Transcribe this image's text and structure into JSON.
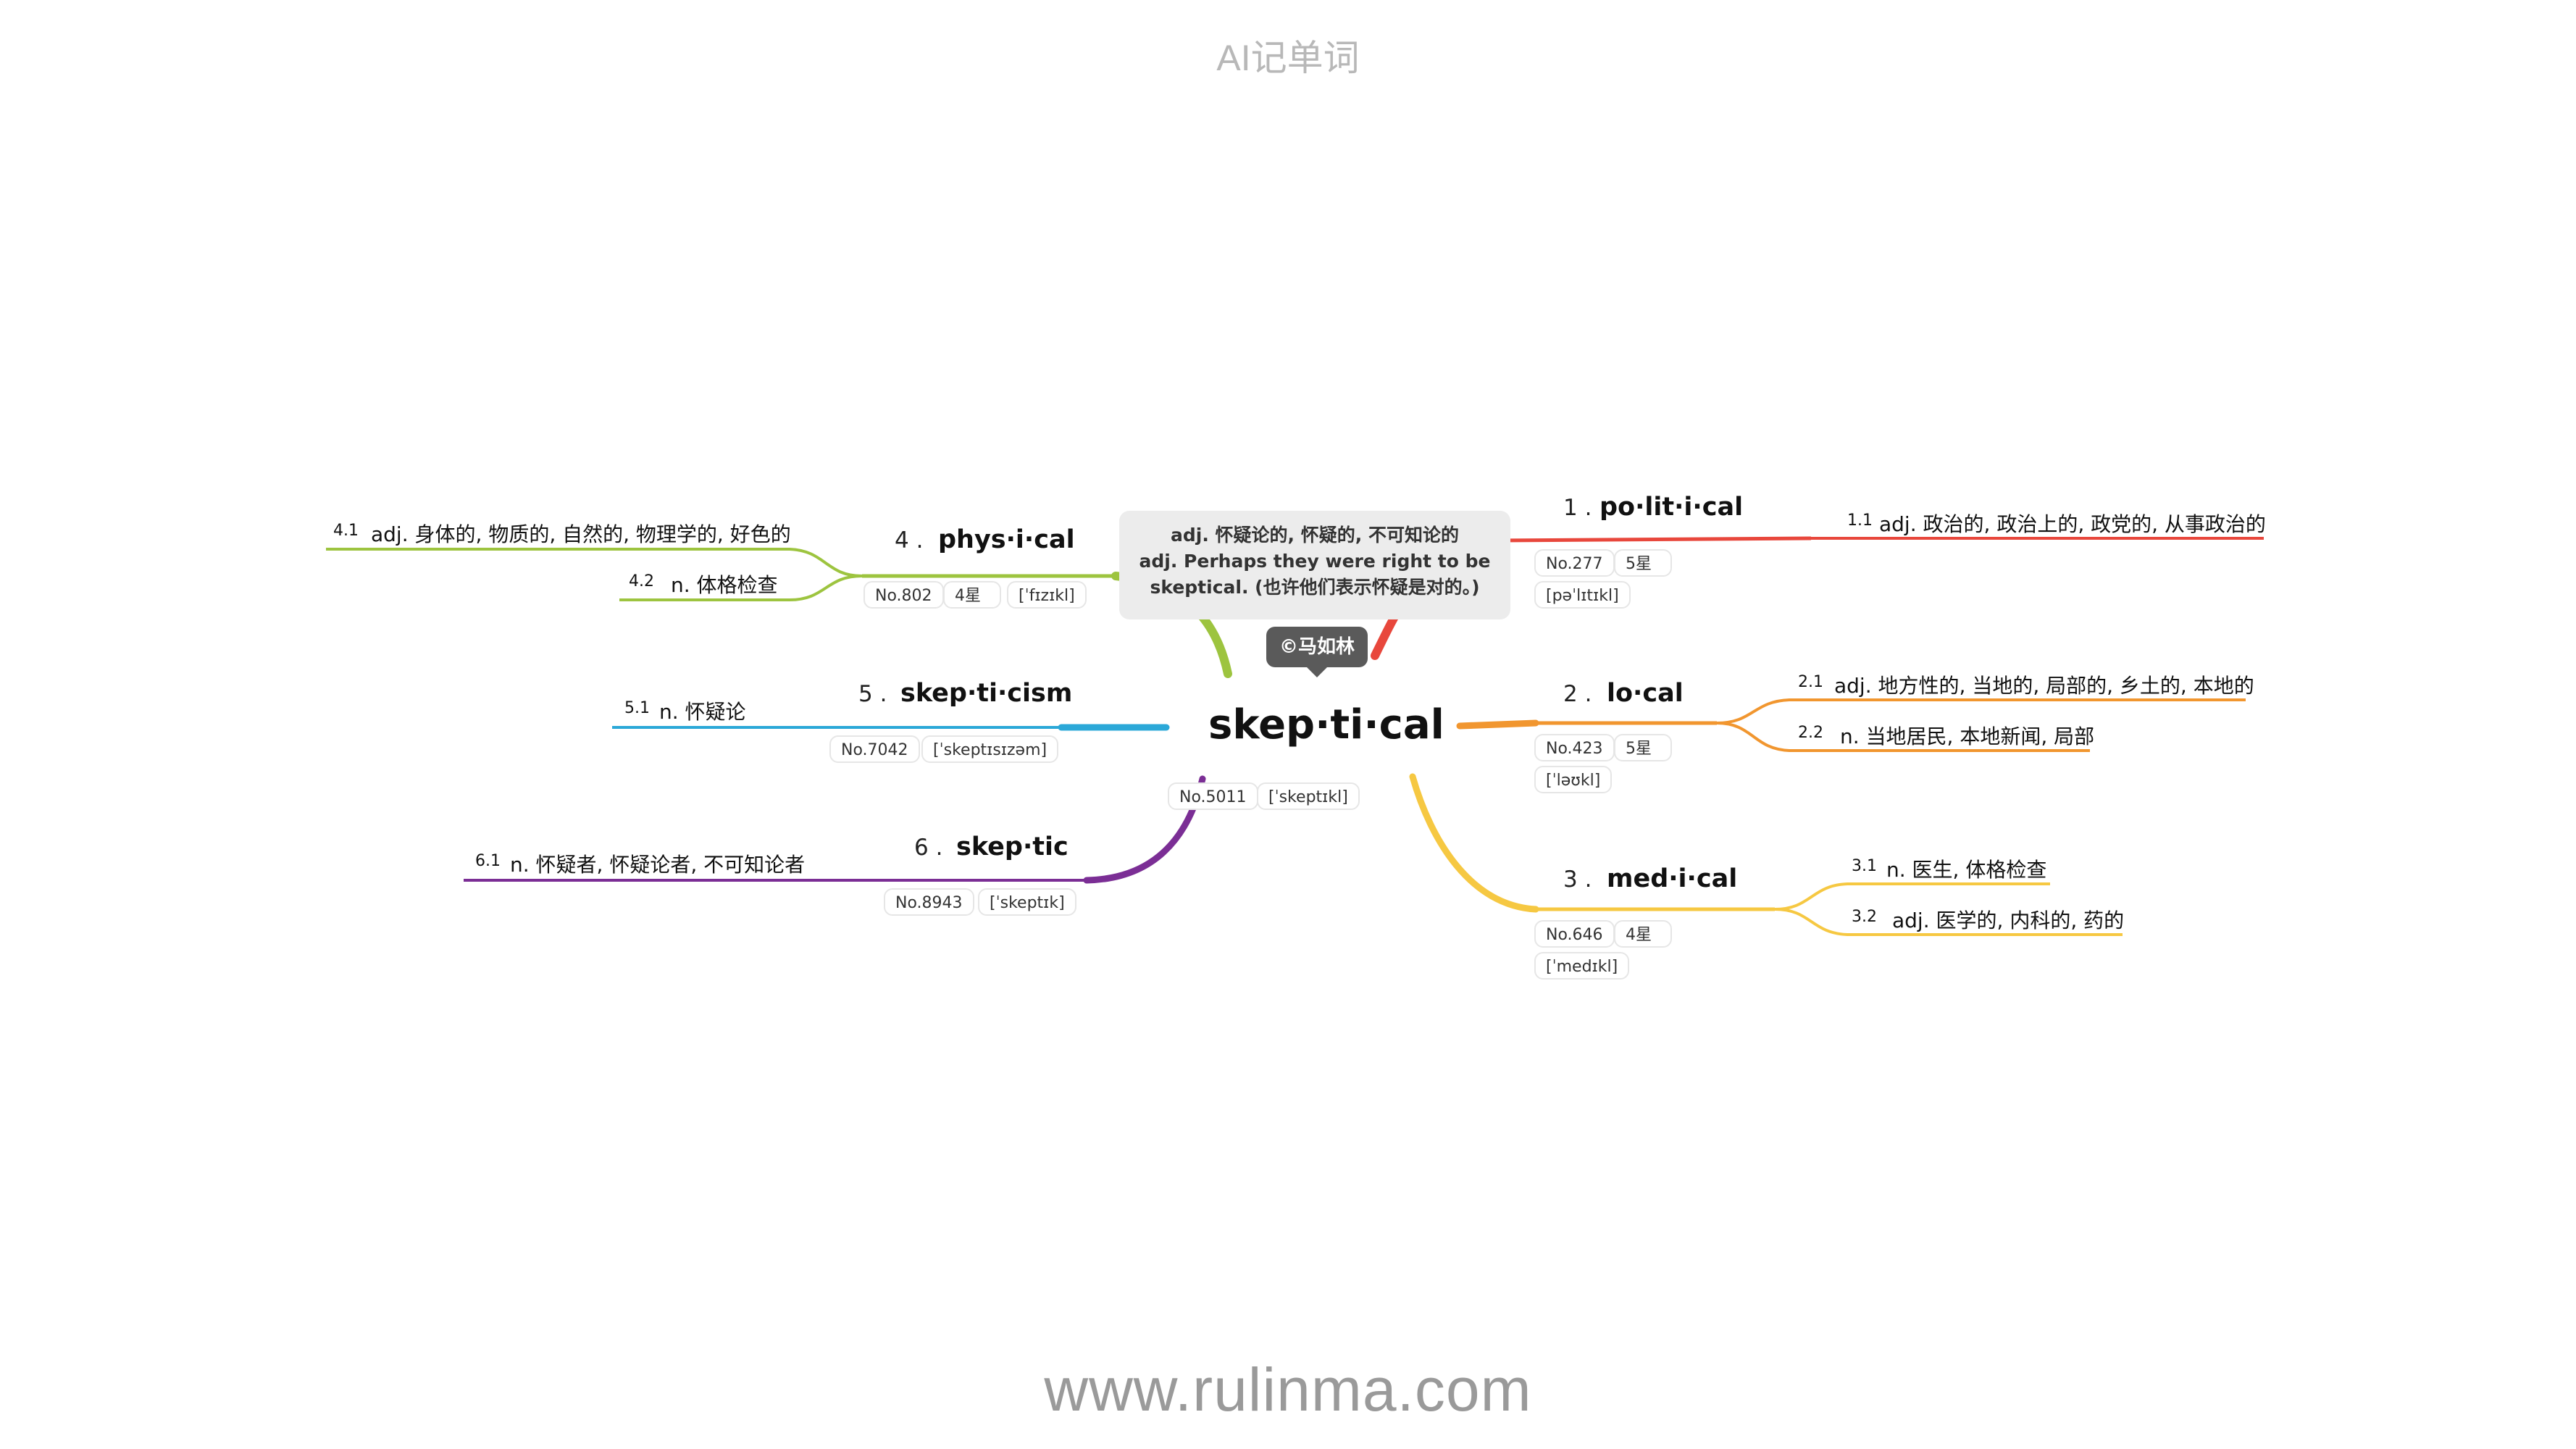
{
  "header": {
    "title": "AI记单词"
  },
  "footer": {
    "url": "www.rulinma.com"
  },
  "center": {
    "word": "skep·ti·cal",
    "no": "No.5011",
    "phonetic": "[ˈskeptɪkl]",
    "note_lines": [
      "adj. 怀疑论的, 怀疑的, 不可知论的",
      "adj. Perhaps they were right to be",
      "skeptical. (也许他们表示怀疑是对的。)"
    ],
    "copyright": "©马如林"
  },
  "branches": [
    {
      "id": 1,
      "num": "1 .",
      "word": "po·lit·i·cal",
      "color": "#e8473c",
      "no": "No.277",
      "stars": "5星",
      "phonetic": "[pəˈlɪtɪkl]",
      "defs": [
        {
          "num": "1.1",
          "text": "adj. 政治的, 政治上的, 政党的, 从事政治的"
        }
      ]
    },
    {
      "id": 2,
      "num": "2 .",
      "word": "lo·cal",
      "color": "#f1962f",
      "no": "No.423",
      "stars": "5星",
      "phonetic": "[ˈləʊkl]",
      "defs": [
        {
          "num": "2.1",
          "text": "adj. 地方性的, 当地的, 局部的, 乡土的, 本地的"
        },
        {
          "num": "2.2",
          "text": "n. 当地居民, 本地新闻, 局部"
        }
      ]
    },
    {
      "id": 3,
      "num": "3 .",
      "word": "med·i·cal",
      "color": "#f6c842",
      "no": "No.646",
      "stars": "4星",
      "phonetic": "[ˈmedɪkl]",
      "defs": [
        {
          "num": "3.1",
          "text": "n. 医生, 体格检查"
        },
        {
          "num": "3.2",
          "text": "adj. 医学的, 内科的, 药的"
        }
      ]
    },
    {
      "id": 4,
      "num": "4 .",
      "word": "phys·i·cal",
      "color": "#9dc43f",
      "no": "No.802",
      "stars": "4星",
      "phonetic": "[ˈfɪzɪkl]",
      "defs": [
        {
          "num": "4.1",
          "text": "adj. 身体的, 物质的, 自然的, 物理学的, 好色的"
        },
        {
          "num": "4.2",
          "text": "n. 体格检查"
        }
      ]
    },
    {
      "id": 5,
      "num": "5 .",
      "word": "skep·ti·cism",
      "color": "#2ba8d8",
      "no": "No.7042",
      "phonetic": "[ˈskeptɪsɪzəm]",
      "defs": [
        {
          "num": "5.1",
          "text": "n. 怀疑论"
        }
      ]
    },
    {
      "id": 6,
      "num": "6 .",
      "word": "skep·tic",
      "color": "#7b2e95",
      "no": "No.8943",
      "phonetic": "[ˈskeptɪk]",
      "defs": [
        {
          "num": "6.1",
          "text": "n. 怀疑者, 怀疑论者, 不可知论者"
        }
      ]
    }
  ]
}
